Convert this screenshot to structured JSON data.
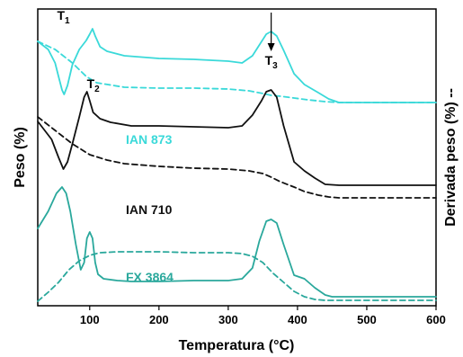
{
  "chart_data": {
    "type": "line",
    "xlabel": "Temperatura (°C)",
    "ylabel_left": "Peso (%)",
    "ylabel_right": "Derivada peso (%) --",
    "xlim": [
      25,
      600
    ],
    "xticks": [
      100,
      200,
      300,
      400,
      500,
      600
    ],
    "annotations": [
      {
        "text": "T",
        "sub": "1",
        "x": 62
      },
      {
        "text": "T",
        "sub": "2",
        "x": 105
      },
      {
        "text": "T",
        "sub": "3",
        "x": 362
      }
    ],
    "series": [
      {
        "name": "IAN 873",
        "color": "#3ad9d9",
        "dash": false,
        "x": [
          25,
          40,
          50,
          55,
          60,
          63,
          68,
          75,
          85,
          95,
          100,
          104,
          108,
          115,
          125,
          150,
          200,
          250,
          300,
          320,
          335,
          345,
          355,
          362,
          370,
          380,
          395,
          410,
          430,
          445,
          460,
          500,
          550,
          600
        ],
        "y": [
          36,
          45,
          60,
          75,
          90,
          95,
          85,
          62,
          45,
          35,
          28,
          22,
          30,
          42,
          47,
          52,
          55,
          56,
          58,
          60,
          52,
          40,
          28,
          25,
          30,
          46,
          72,
          84,
          93,
          100,
          104,
          104,
          104,
          104
        ]
      },
      {
        "name": "",
        "color": "#3ad9d9",
        "dash": true,
        "x": [
          25,
          50,
          75,
          95,
          110,
          150,
          200,
          250,
          300,
          330,
          350,
          362,
          375,
          395,
          415,
          440,
          460,
          500,
          550,
          600
        ],
        "y": [
          36,
          45,
          60,
          75,
          82,
          87,
          88,
          88,
          89,
          91,
          94,
          96,
          97,
          99,
          101,
          103,
          104,
          104,
          104,
          104
        ]
      },
      {
        "name": "IAN 710",
        "color": "#111111",
        "dash": false,
        "x": [
          25,
          45,
          55,
          62,
          68,
          75,
          85,
          92,
          96,
          100,
          105,
          115,
          130,
          160,
          200,
          250,
          300,
          320,
          335,
          348,
          355,
          362,
          370,
          380,
          395,
          410,
          425,
          440,
          460,
          500,
          550,
          600
        ],
        "y": [
          125,
          145,
          165,
          178,
          170,
          150,
          120,
          98,
          92,
          102,
          115,
          122,
          126,
          130,
          130,
          131,
          132,
          130,
          118,
          102,
          92,
          90,
          98,
          130,
          170,
          180,
          188,
          195,
          196,
          196,
          196,
          196
        ]
      },
      {
        "name": "",
        "color": "#111111",
        "dash": true,
        "x": [
          25,
          50,
          75,
          100,
          125,
          150,
          200,
          250,
          300,
          330,
          350,
          362,
          375,
          395,
          410,
          430,
          445,
          460,
          500,
          550,
          600
        ],
        "y": [
          120,
          135,
          150,
          162,
          168,
          172,
          175,
          177,
          178,
          180,
          183,
          187,
          192,
          198,
          203,
          207,
          209,
          210,
          210,
          210,
          210
        ]
      },
      {
        "name": "FX 3864",
        "color": "#2aa89c",
        "dash": false,
        "x": [
          25,
          40,
          52,
          60,
          66,
          72,
          80,
          87,
          92,
          96,
          100,
          104,
          108,
          112,
          120,
          140,
          160,
          200,
          250,
          300,
          320,
          335,
          345,
          355,
          362,
          370,
          380,
          395,
          410,
          425,
          440,
          450,
          460,
          500,
          550,
          600
        ],
        "y": [
          244,
          225,
          205,
          198,
          205,
          225,
          262,
          290,
          282,
          255,
          248,
          255,
          282,
          295,
          300,
          302,
          303,
          303,
          302,
          302,
          300,
          288,
          258,
          236,
          234,
          238,
          262,
          296,
          300,
          310,
          318,
          320,
          320,
          320,
          320,
          320
        ]
      },
      {
        "name": "",
        "color": "#2aa89c",
        "dash": true,
        "x": [
          25,
          40,
          55,
          70,
          85,
          100,
          115,
          140,
          175,
          200,
          250,
          300,
          320,
          335,
          350,
          365,
          380,
          395,
          410,
          425,
          440,
          460,
          500,
          550,
          600
        ],
        "y": [
          325,
          315,
          304,
          290,
          280,
          274,
          271,
          270,
          270,
          270,
          271,
          271,
          272,
          275,
          282,
          294,
          304,
          314,
          320,
          323,
          324,
          324,
          324,
          324,
          324
        ]
      }
    ]
  },
  "labels": [
    {
      "text": "IAN 873",
      "x": 140,
      "y": 160,
      "color": "#3ad9d9"
    },
    {
      "text": "IAN 710",
      "x": 140,
      "y": 238,
      "color": "#111111"
    },
    {
      "text": "FX 3864",
      "x": 140,
      "y": 313,
      "color": "#2aa89c"
    }
  ]
}
